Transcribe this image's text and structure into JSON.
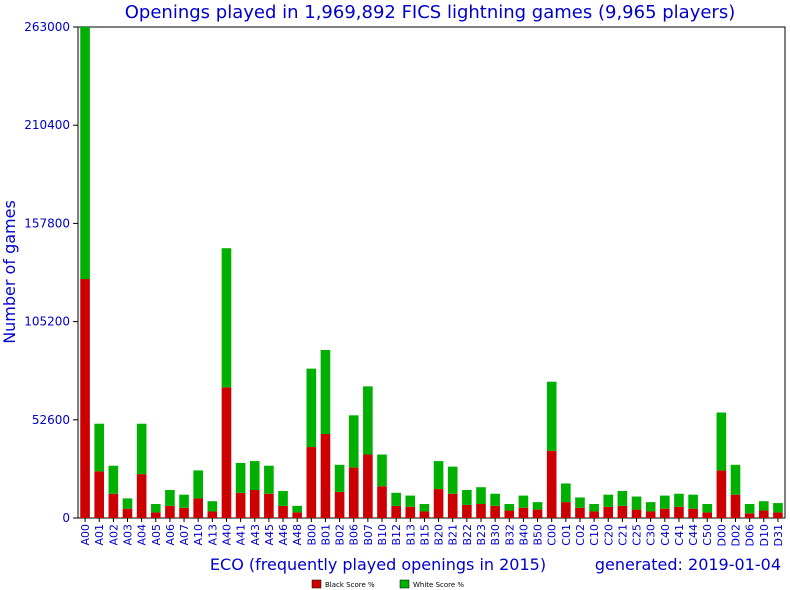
{
  "chart_data": {
    "type": "bar",
    "stacked": true,
    "title": "Openings played in 1,969,892 FICS lightning games (9,965 players)",
    "xlabel": "ECO (frequently played openings in 2015)",
    "ylabel": "Number of games",
    "footer_note": "generated: 2019-01-04",
    "ylim": [
      0,
      263000
    ],
    "yticks": [
      0,
      52600,
      105200,
      157800,
      210400,
      263000
    ],
    "grid": false,
    "legend_position": "bottom-center",
    "categories": [
      "A00",
      "A01",
      "A02",
      "A03",
      "A04",
      "A05",
      "A06",
      "A07",
      "A10",
      "A13",
      "A40",
      "A41",
      "A43",
      "A45",
      "A46",
      "A48",
      "B00",
      "B01",
      "B02",
      "B06",
      "B07",
      "B10",
      "B12",
      "B13",
      "B15",
      "B20",
      "B21",
      "B22",
      "B23",
      "B30",
      "B32",
      "B40",
      "B50",
      "C00",
      "C01",
      "C02",
      "C10",
      "C20",
      "C21",
      "C25",
      "C30",
      "C40",
      "C41",
      "C44",
      "C50",
      "D00",
      "D02",
      "D06",
      "D10",
      "D31"
    ],
    "series": [
      {
        "name": "Black Score %",
        "color": "#cc0000",
        "values": [
          128000,
          25000,
          13000,
          5000,
          23500,
          3000,
          6500,
          5500,
          10500,
          3500,
          70000,
          13500,
          15000,
          13000,
          6500,
          3000,
          38000,
          45000,
          14000,
          27000,
          34000,
          17000,
          6500,
          6000,
          3500,
          15500,
          13000,
          7000,
          7500,
          6500,
          4000,
          5500,
          4500,
          36000,
          8500,
          5500,
          3500,
          6000,
          6500,
          4500,
          3500,
          5000,
          6000,
          5000,
          3000,
          25500,
          12500,
          2500,
          4000,
          3000
        ]
      },
      {
        "name": "White Score %",
        "color": "#00b000",
        "values": [
          135000,
          25500,
          15000,
          5500,
          27000,
          4500,
          8500,
          7000,
          15000,
          5500,
          74500,
          16000,
          15500,
          15000,
          8000,
          3500,
          42000,
          45000,
          14500,
          28000,
          36500,
          17000,
          7000,
          6000,
          4000,
          15000,
          14500,
          8000,
          9000,
          6500,
          3500,
          6500,
          4000,
          37000,
          10000,
          5500,
          4000,
          6500,
          8000,
          7000,
          5000,
          7000,
          7000,
          7500,
          4500,
          31000,
          16000,
          5000,
          5000,
          5000
        ]
      }
    ]
  }
}
